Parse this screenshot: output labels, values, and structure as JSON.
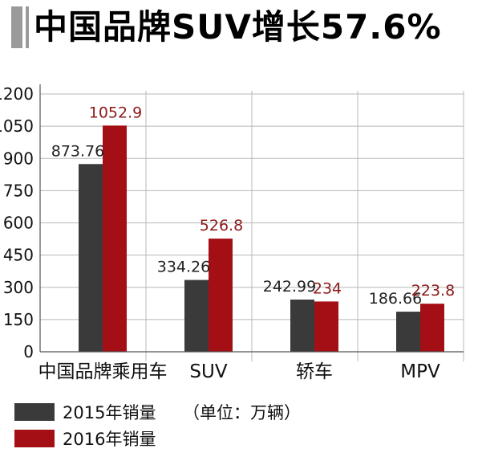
{
  "title": "中国品牌SUV增长57.6%",
  "colors": {
    "s2015": "#3a3a3a",
    "s2016": "#a40f16",
    "label2016": "#8b1a1a",
    "grid": "#b8b8b8"
  },
  "chart_data": {
    "type": "bar",
    "categories": [
      "中国品牌乘用车",
      "SUV",
      "轿车",
      "MPV"
    ],
    "series": [
      {
        "name": "2015年销量",
        "values": [
          873.76,
          334.26,
          242.99,
          186.66
        ],
        "labels": [
          "873.76",
          "334.26",
          "242.99",
          "186.66"
        ]
      },
      {
        "name": "2016年销量",
        "values": [
          1052.9,
          526.8,
          234,
          223.8
        ],
        "labels": [
          "1052.9",
          "526.8",
          "234",
          "223.8"
        ]
      }
    ],
    "yticks": [
      "0",
      "150",
      "300",
      "450",
      "600",
      "750",
      "900",
      "1050",
      "1200"
    ],
    "ylim": [
      0,
      1200
    ],
    "unit_note": "（单位：万辆）",
    "legend_position": "bottom-left",
    "grid": true
  }
}
